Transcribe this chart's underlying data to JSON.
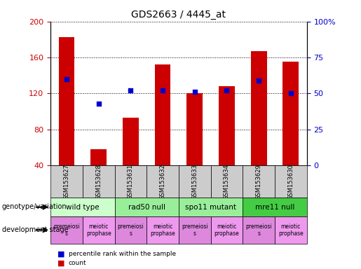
{
  "title": "GDS2663 / 4445_at",
  "samples": [
    "GSM153627",
    "GSM153628",
    "GSM153631",
    "GSM153632",
    "GSM153633",
    "GSM153634",
    "GSM153629",
    "GSM153630"
  ],
  "counts": [
    183,
    58,
    93,
    152,
    120,
    128,
    167,
    155
  ],
  "percentile_ranks": [
    60,
    43,
    52,
    52,
    51,
    52,
    59,
    50
  ],
  "ylim_left": [
    40,
    200
  ],
  "ylim_right": [
    0,
    100
  ],
  "yticks_left": [
    40,
    80,
    120,
    160,
    200
  ],
  "yticks_right": [
    0,
    25,
    50,
    75,
    100
  ],
  "bar_color": "#cc0000",
  "dot_color": "#0000cc",
  "bar_width": 0.5,
  "genotype_groups": [
    {
      "label": "wild type",
      "start": 0,
      "end": 2,
      "color": "#ccffcc"
    },
    {
      "label": "rad50 null",
      "start": 2,
      "end": 4,
      "color": "#99ee99"
    },
    {
      "label": "spo11 mutant",
      "start": 4,
      "end": 6,
      "color": "#99ee99"
    },
    {
      "label": "mre11 null",
      "start": 6,
      "end": 8,
      "color": "#44cc44"
    }
  ],
  "dev_stage_groups": [
    {
      "label": "premeiosi\ns",
      "start": 0,
      "end": 1,
      "color": "#dd88dd"
    },
    {
      "label": "meiotic\nprophase",
      "start": 1,
      "end": 2,
      "color": "#ee99ee"
    },
    {
      "label": "premeiosi\ns",
      "start": 2,
      "end": 3,
      "color": "#dd88dd"
    },
    {
      "label": "meiotic\nprophase",
      "start": 3,
      "end": 4,
      "color": "#ee99ee"
    },
    {
      "label": "premeiosi\ns",
      "start": 4,
      "end": 5,
      "color": "#dd88dd"
    },
    {
      "label": "meiotic\nprophase",
      "start": 5,
      "end": 6,
      "color": "#ee99ee"
    },
    {
      "label": "premeiosi\ns",
      "start": 6,
      "end": 7,
      "color": "#dd88dd"
    },
    {
      "label": "meiotic\nprophase",
      "start": 7,
      "end": 8,
      "color": "#ee99ee"
    }
  ],
  "tick_label_color_left": "#cc0000",
  "tick_label_color_right": "#0000cc",
  "sample_box_color": "#cccccc",
  "legend_count_color": "#cc0000",
  "legend_pct_color": "#0000cc"
}
